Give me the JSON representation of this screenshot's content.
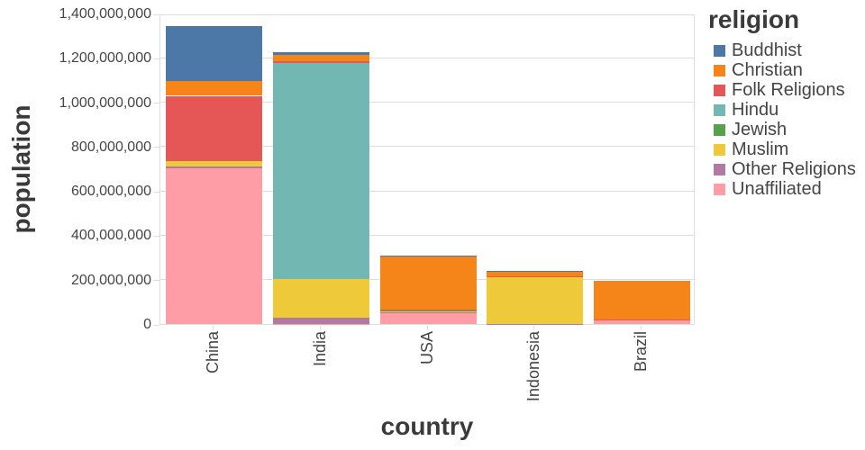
{
  "chart_data": {
    "type": "bar",
    "stacked": true,
    "xlabel": "country",
    "ylabel": "population",
    "categories": [
      "China",
      "India",
      "USA",
      "Indonesia",
      "Brazil"
    ],
    "series": [
      {
        "name": "Buddhist",
        "color": "#4c78a8",
        "values": [
          244130000,
          9250000,
          3570000,
          1720000,
          250000
        ]
      },
      {
        "name": "Christian",
        "color": "#f58518",
        "values": [
          68410000,
          31130000,
          243060000,
          23660000,
          173300000
        ]
      },
      {
        "name": "Folk Religions",
        "color": "#e45756",
        "values": [
          294320000,
          5840000,
          630000,
          750000,
          5540000
        ]
      },
      {
        "name": "Hindu",
        "color": "#72b7b2",
        "values": [
          20000,
          973750000,
          1790000,
          4050000,
          0
        ]
      },
      {
        "name": "Jewish",
        "color": "#54a24b",
        "values": [
          0,
          10000,
          5690000,
          0,
          110000
        ]
      },
      {
        "name": "Muslim",
        "color": "#eeca3b",
        "values": [
          24690000,
          176190000,
          2770000,
          209120000,
          40000
        ]
      },
      {
        "name": "Other Religions",
        "color": "#b279a2",
        "values": [
          9080000,
          27560000,
          1900000,
          340000,
          300000
        ]
      },
      {
        "name": "Unaffiliated",
        "color": "#ff9da6",
        "values": [
          700680000,
          870000,
          50980000,
          240000,
          15410000
        ]
      }
    ],
    "stack_order_top_to_bottom": [
      "Buddhist",
      "Christian",
      "Folk Religions",
      "Hindu",
      "Jewish",
      "Muslim",
      "Other Religions",
      "Unaffiliated"
    ],
    "ylim": [
      0,
      1400000000
    ],
    "grid": true,
    "y_ticks": [
      {
        "value": 0,
        "label": "0"
      },
      {
        "value": 200000000,
        "label": "200,000,000"
      },
      {
        "value": 400000000,
        "label": "400,000,000"
      },
      {
        "value": 600000000,
        "label": "600,000,000"
      },
      {
        "value": 800000000,
        "label": "800,000,000"
      },
      {
        "value": 1000000000,
        "label": "1,000,000,000"
      },
      {
        "value": 1200000000,
        "label": "1,200,000,000"
      },
      {
        "value": 1400000000,
        "label": "1,400,000,000"
      }
    ],
    "legend": {
      "title": "religion",
      "position": "right",
      "entries": [
        "Buddhist",
        "Christian",
        "Folk Religions",
        "Hindu",
        "Jewish",
        "Muslim",
        "Other Religions",
        "Unaffiliated"
      ]
    },
    "colors": {
      "grid": "#dddddd",
      "tick_label": "#454545",
      "axis_title": "#3a3a3a",
      "background": "#ffffff"
    }
  }
}
